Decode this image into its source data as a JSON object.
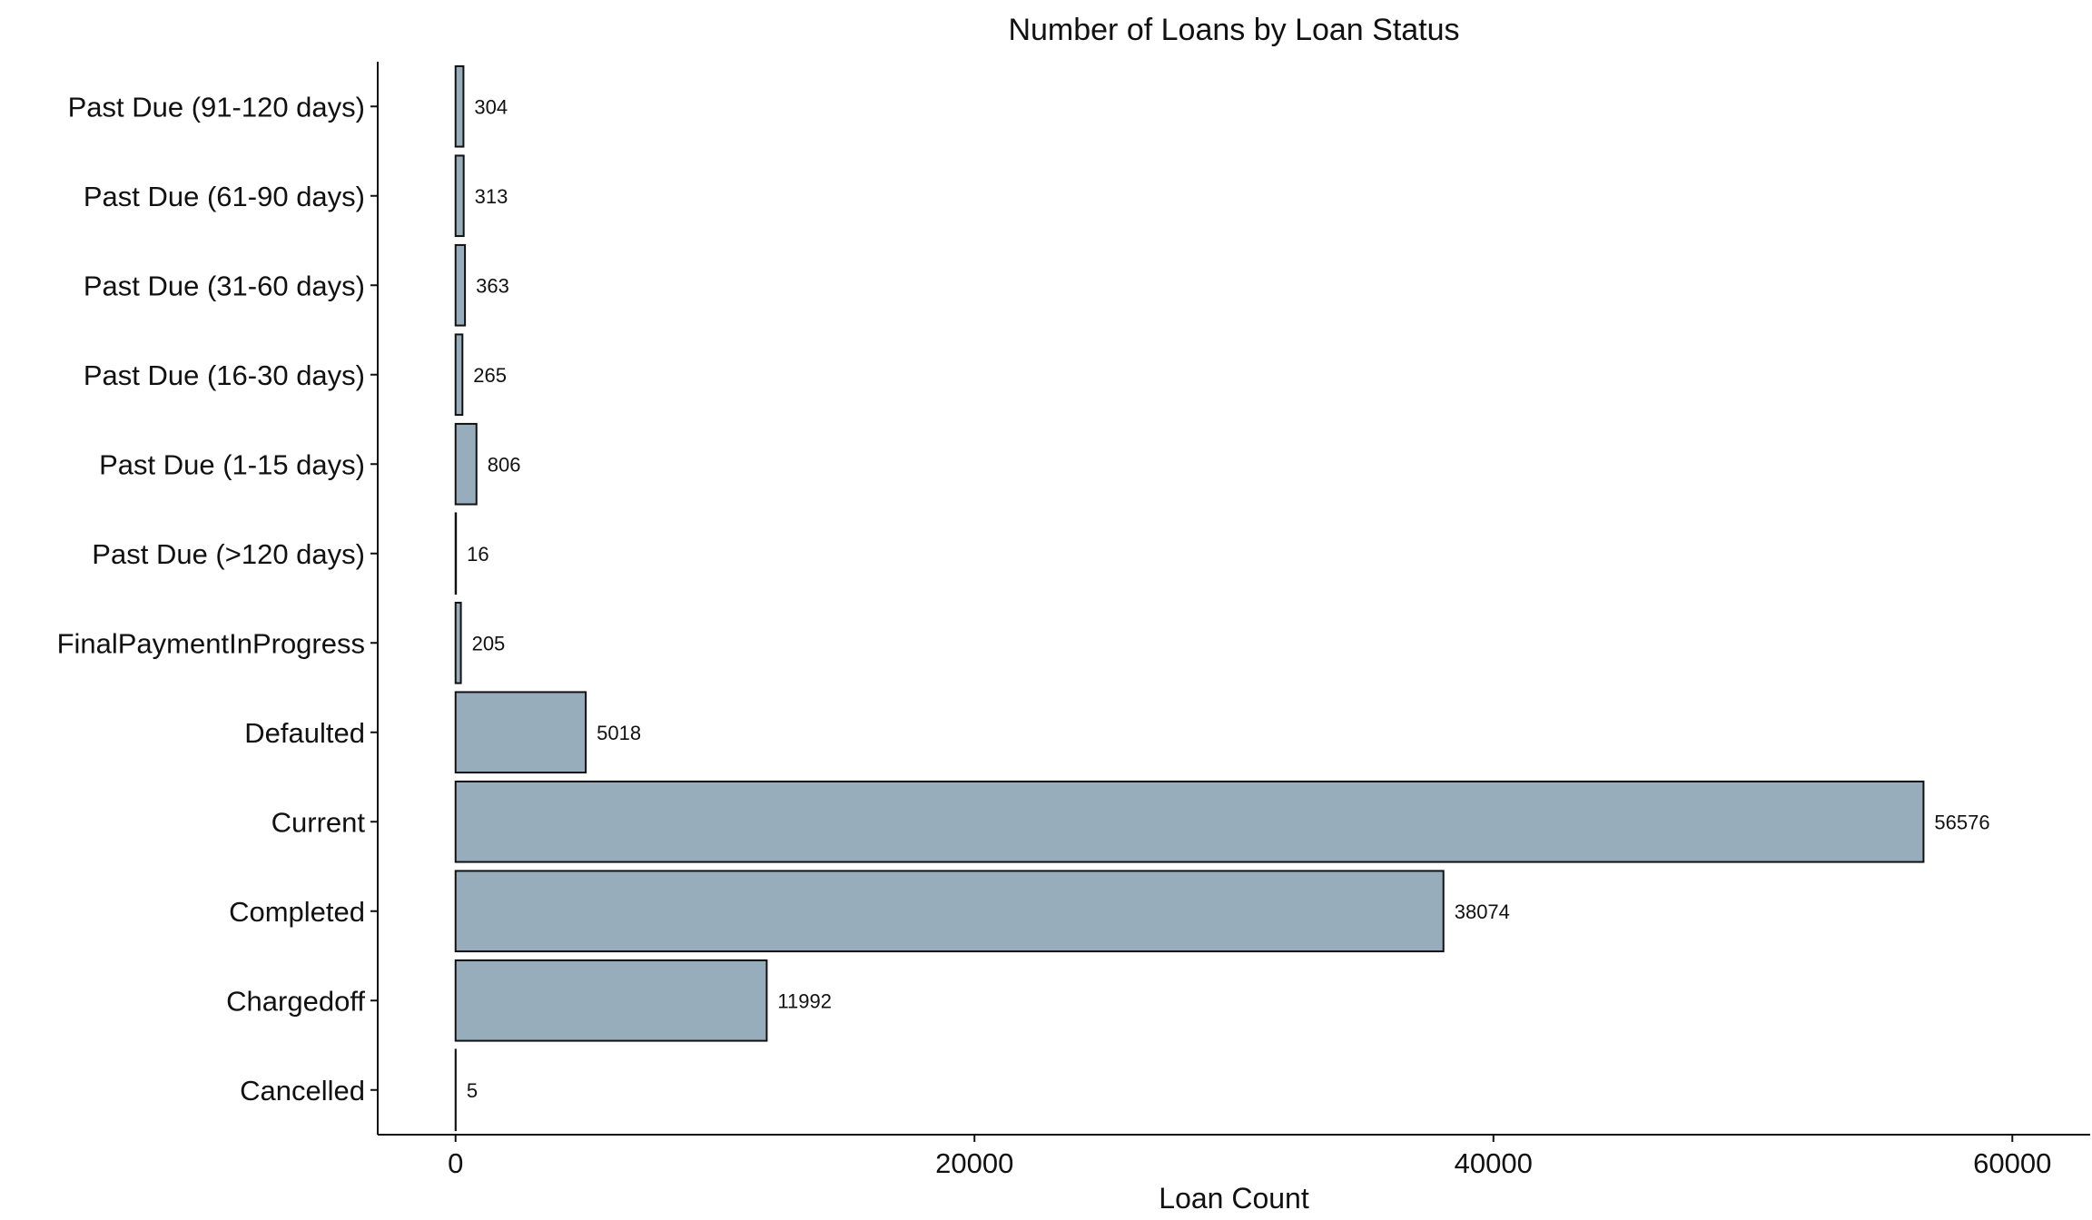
{
  "chart_data": {
    "type": "bar",
    "orientation": "horizontal",
    "title": "Number of Loans by Loan Status",
    "xlabel": "Loan Count",
    "ylabel": "",
    "categories": [
      "Cancelled",
      "Chargedoff",
      "Completed",
      "Current",
      "Defaulted",
      "FinalPaymentInProgress",
      "Past Due (>120 days)",
      "Past Due (1-15 days)",
      "Past Due (16-30 days)",
      "Past Due (31-60 days)",
      "Past Due (61-90 days)",
      "Past Due (91-120 days)"
    ],
    "values": [
      5,
      11992,
      38074,
      56576,
      5018,
      205,
      16,
      806,
      265,
      363,
      313,
      304
    ],
    "value_labels": [
      "5",
      "11992",
      "38074",
      "56576",
      "5018",
      "205",
      "16",
      "806",
      "265",
      "363",
      "313",
      "304"
    ],
    "xlim": [
      -3000,
      63000
    ],
    "xticks": [
      0,
      20000,
      40000,
      60000
    ],
    "xtick_labels": [
      "0",
      "20000",
      "40000",
      "60000"
    ],
    "grid": false,
    "legend": "none",
    "colors": {
      "bar_fill": "#97adbc",
      "bar_stroke": "#111111",
      "axis": "#111111",
      "text": "#111111",
      "background": "#ffffff"
    }
  }
}
